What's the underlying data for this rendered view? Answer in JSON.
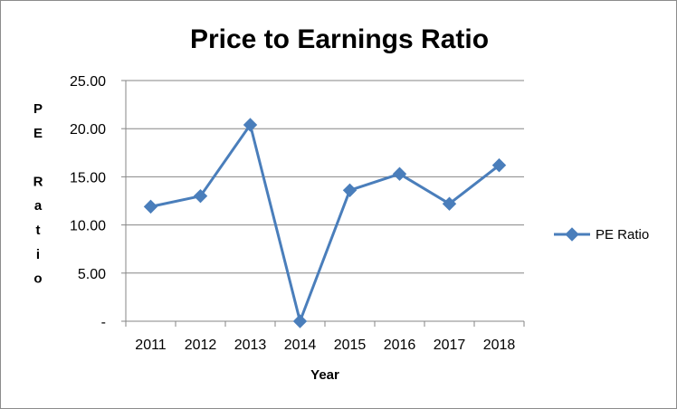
{
  "chart_data": {
    "type": "line",
    "title": "Price to Earnings Ratio",
    "xlabel": "Year",
    "ylabel": "PE Ratio",
    "categories": [
      "2011",
      "2012",
      "2013",
      "2014",
      "2015",
      "2016",
      "2017",
      "2018"
    ],
    "series": [
      {
        "name": "PE Ratio",
        "values": [
          11.9,
          13.0,
          20.4,
          0.0,
          13.6,
          15.3,
          12.2,
          16.2
        ]
      }
    ],
    "ylim": [
      0,
      25
    ],
    "yticks": [
      0,
      5,
      10,
      15,
      20,
      25
    ],
    "yticklabels": [
      "-",
      "5.00",
      "10.00",
      "15.00",
      "20.00",
      "25.00"
    ],
    "grid": "horizontal",
    "legend_position": "right",
    "marker": "diamond",
    "series_color": "#4a7ebb"
  }
}
